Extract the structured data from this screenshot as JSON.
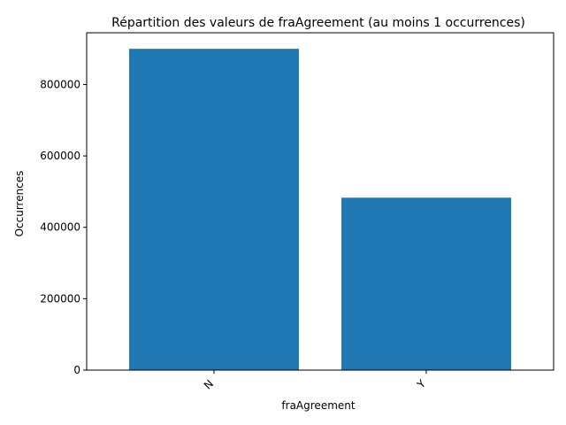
{
  "chart_data": {
    "type": "bar",
    "title": "Répartition des valeurs de fraAgreement (au moins 1 occurrences)",
    "xlabel": "fraAgreement",
    "ylabel": "Occurrences",
    "categories": [
      "N",
      "Y"
    ],
    "values": [
      900000,
      483000
    ],
    "ylim": [
      0,
      945000
    ],
    "yticks": [
      0,
      200000,
      400000,
      600000,
      800000
    ],
    "ytick_labels": [
      "0",
      "200000",
      "400000",
      "600000",
      "800000"
    ],
    "x_tick_rotation": "rotated 45°",
    "grid": false,
    "legend": "none",
    "bar_color": "#1f77b4"
  }
}
